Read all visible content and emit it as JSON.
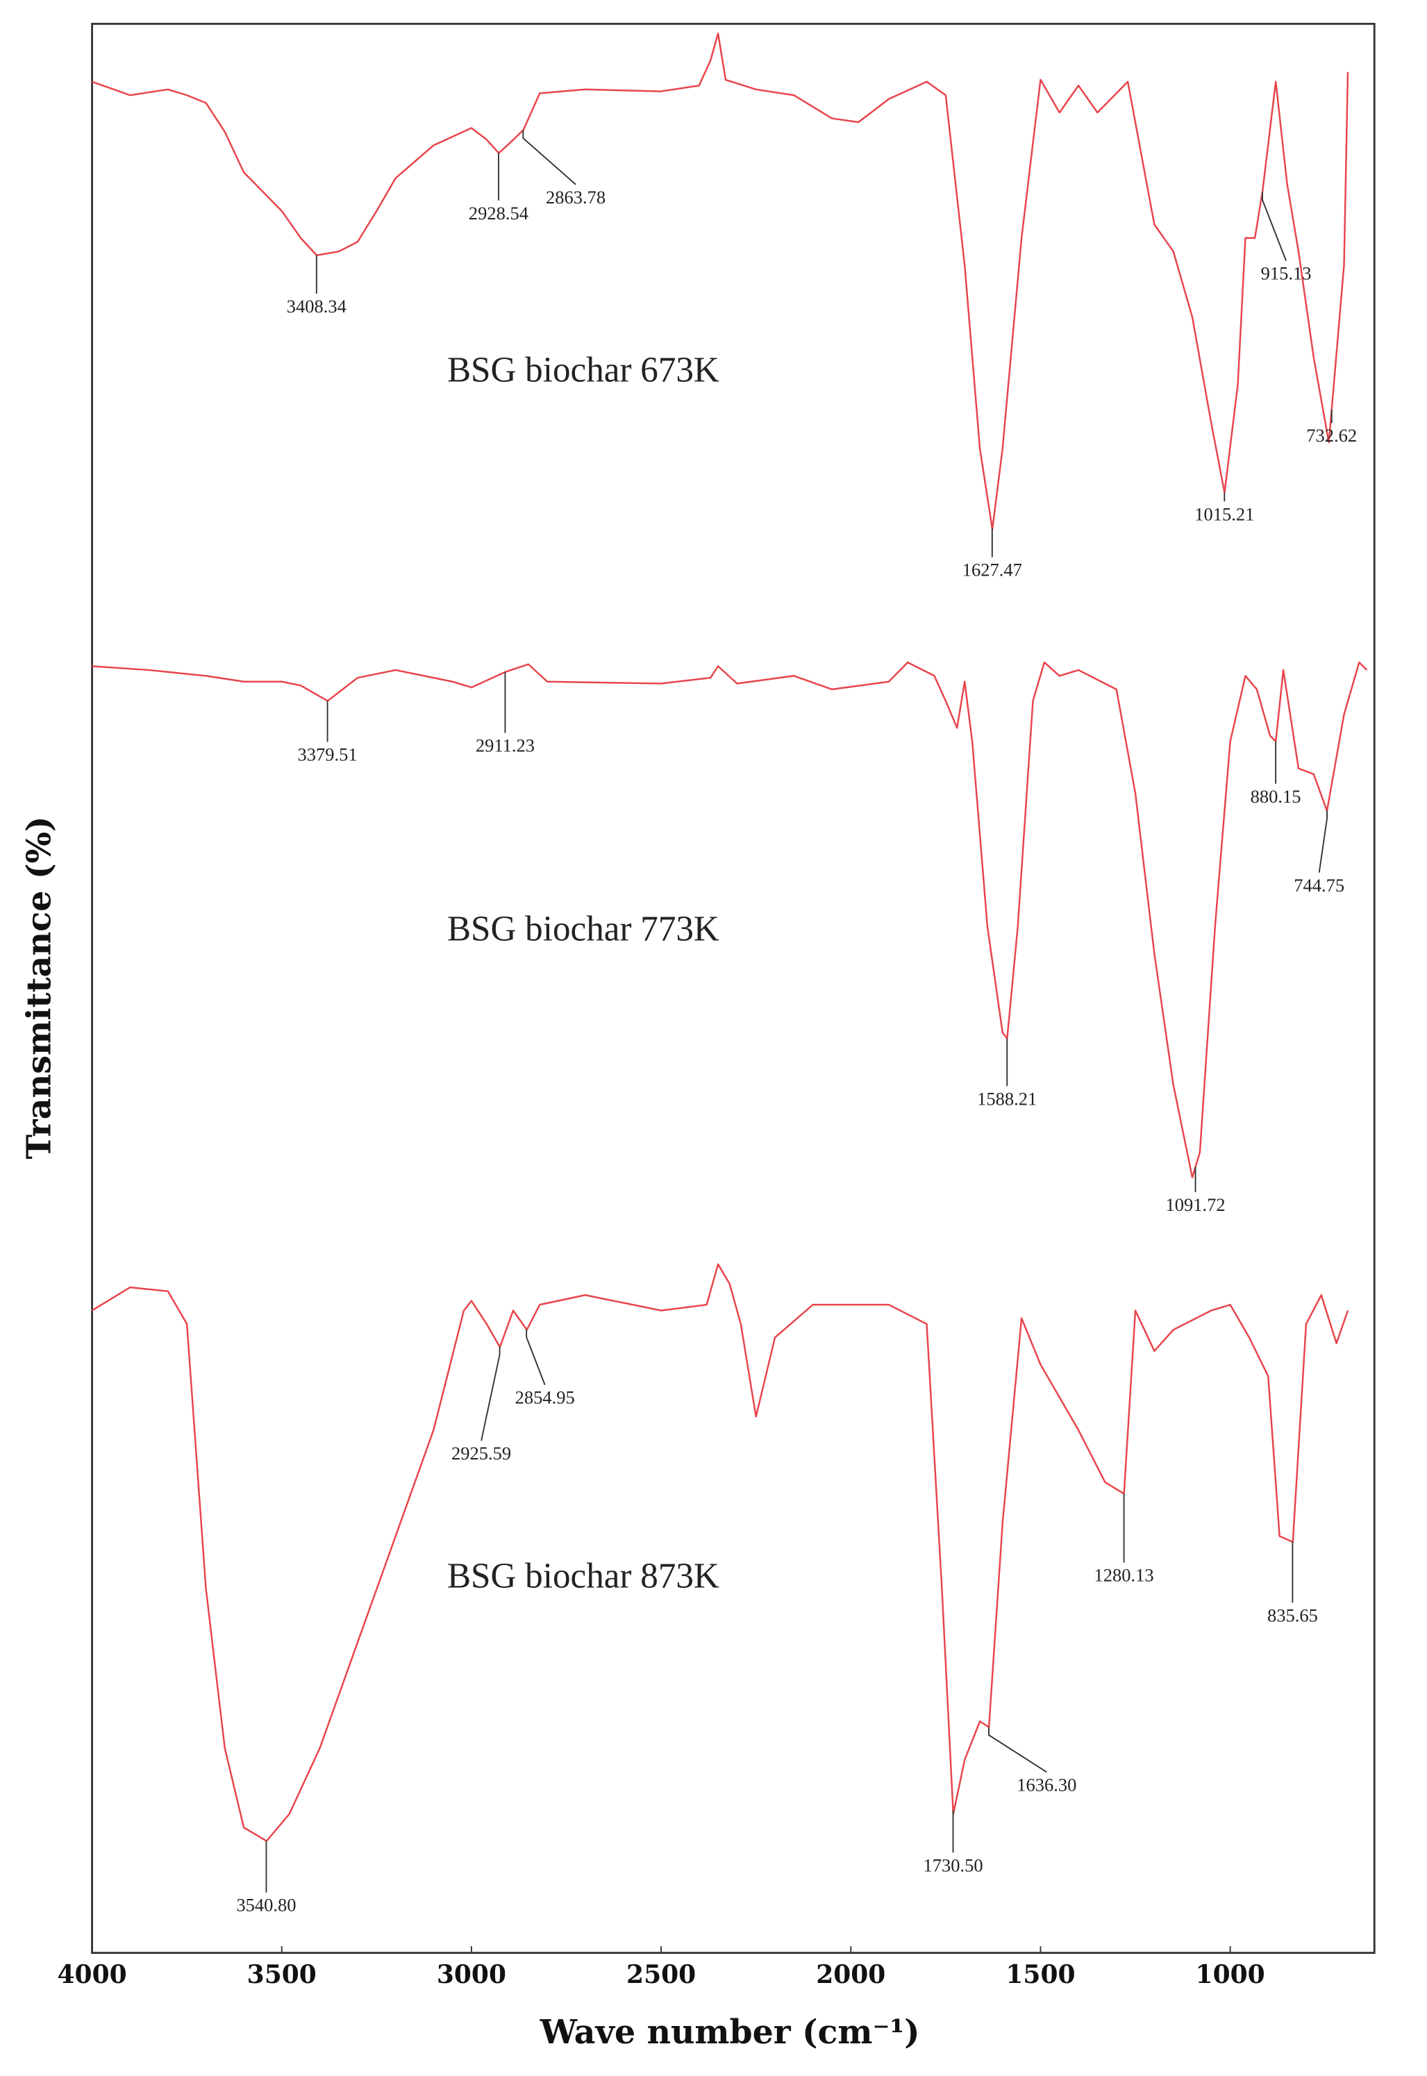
{
  "chart_data": {
    "type": "line",
    "xlabel": "Wave number (cm⁻¹)",
    "ylabel": "Transmittance (%)",
    "xlim": [
      4000,
      620
    ],
    "xticks": [
      4000,
      3500,
      3000,
      2500,
      2000,
      1500,
      1000
    ],
    "ylim": [
      0,
      100
    ],
    "series": [
      {
        "name": "BSG biochar 673K",
        "color": "#e8444a",
        "x": [
          4000,
          3900,
          3800,
          3750,
          3700,
          3650,
          3600,
          3550,
          3500,
          3450,
          3408,
          3350,
          3300,
          3250,
          3200,
          3100,
          3000,
          2960,
          2928,
          2900,
          2863,
          2820,
          2700,
          2500,
          2400,
          2370,
          2350,
          2330,
          2250,
          2150,
          2050,
          1980,
          1900,
          1800,
          1750,
          1700,
          1660,
          1627,
          1600,
          1550,
          1500,
          1450,
          1400,
          1350,
          1270,
          1200,
          1150,
          1100,
          1050,
          1015,
          980,
          960,
          935,
          915,
          880,
          850,
          820,
          780,
          740,
          700,
          690
        ],
        "values": [
          97.0,
          96.3,
          96.6,
          96.3,
          95.9,
          94.4,
          92.3,
          91.3,
          90.3,
          88.9,
          88.0,
          88.2,
          88.7,
          90.3,
          92.0,
          93.7,
          94.6,
          94.0,
          93.3,
          93.8,
          94.5,
          96.4,
          96.6,
          96.5,
          96.8,
          98.1,
          99.5,
          97.1,
          96.6,
          96.3,
          95.1,
          94.9,
          96.1,
          97.0,
          96.3,
          87.5,
          78.0,
          73.8,
          78.0,
          88.9,
          97.1,
          95.4,
          96.8,
          95.4,
          97.0,
          89.6,
          88.2,
          84.8,
          79.3,
          75.7,
          81.3,
          88.9,
          88.9,
          91.3,
          97.0,
          91.7,
          88.2,
          82.7,
          78.3,
          87.5,
          97.5
        ],
        "peaks": [
          {
            "value": 3408.34,
            "label": "3408.34"
          },
          {
            "value": 2928.54,
            "label": "2928.54"
          },
          {
            "value": 2863.78,
            "label": "2863.78"
          },
          {
            "value": 1627.47,
            "label": "1627.47"
          },
          {
            "value": 1015.21,
            "label": "1015.21"
          },
          {
            "value": 915.13,
            "label": "915.13"
          },
          {
            "value": 732.62,
            "label": "732.62"
          }
        ]
      },
      {
        "name": "BSG biochar 773K",
        "color": "#e8444a",
        "x": [
          4000,
          3850,
          3700,
          3600,
          3500,
          3450,
          3379,
          3300,
          3200,
          3050,
          3000,
          2911,
          2850,
          2800,
          2500,
          2370,
          2350,
          2300,
          2150,
          2050,
          1900,
          1850,
          1780,
          1750,
          1720,
          1700,
          1680,
          1640,
          1600,
          1588,
          1560,
          1520,
          1490,
          1450,
          1400,
          1300,
          1250,
          1200,
          1150,
          1100,
          1080,
          1040,
          1000,
          960,
          930,
          895,
          880,
          860,
          820,
          780,
          745,
          700,
          660,
          640
        ],
        "values": [
          66.7,
          66.5,
          66.2,
          65.9,
          65.9,
          65.7,
          64.9,
          66.1,
          66.5,
          65.9,
          65.6,
          66.4,
          66.8,
          65.9,
          65.8,
          66.1,
          66.7,
          65.8,
          66.2,
          65.5,
          65.9,
          66.9,
          66.2,
          64.9,
          63.5,
          65.9,
          62.8,
          53.2,
          47.7,
          47.4,
          53.2,
          64.9,
          66.9,
          66.2,
          66.5,
          65.5,
          60.1,
          51.8,
          45.0,
          40.2,
          41.5,
          53.2,
          62.8,
          66.2,
          65.5,
          63.1,
          62.8,
          66.5,
          61.4,
          61.1,
          59.2,
          64.2,
          66.9,
          66.5
        ],
        "peaks": [
          {
            "value": 3379.51,
            "label": "3379.51"
          },
          {
            "value": 2911.23,
            "label": "2911.23"
          },
          {
            "value": 1588.21,
            "label": "1588.21"
          },
          {
            "value": 1091.72,
            "label": "1091.72"
          },
          {
            "value": 880.15,
            "label": "880.15"
          },
          {
            "value": 744.75,
            "label": "744.75"
          }
        ]
      },
      {
        "name": "BSG biochar 873K",
        "color": "#e8444a",
        "x": [
          4000,
          3900,
          3800,
          3750,
          3700,
          3650,
          3600,
          3540,
          3480,
          3400,
          3300,
          3200,
          3100,
          3020,
          3000,
          2960,
          2925,
          2890,
          2854,
          2820,
          2700,
          2500,
          2380,
          2350,
          2320,
          2290,
          2250,
          2200,
          2100,
          1900,
          1800,
          1760,
          1730,
          1700,
          1660,
          1636,
          1600,
          1550,
          1500,
          1400,
          1330,
          1280,
          1250,
          1200,
          1150,
          1050,
          1000,
          950,
          900,
          870,
          835,
          800,
          760,
          720,
          690
        ],
        "values": [
          33.3,
          34.5,
          34.3,
          32.6,
          18.9,
          10.6,
          6.5,
          5.8,
          7.2,
          10.6,
          16.1,
          21.6,
          27.1,
          33.3,
          33.8,
          32.6,
          31.4,
          33.3,
          32.3,
          33.6,
          34.1,
          33.3,
          33.6,
          35.7,
          34.7,
          32.6,
          27.8,
          31.9,
          33.6,
          33.6,
          32.6,
          18.9,
          7.2,
          10.0,
          12.0,
          11.7,
          22.3,
          32.9,
          30.5,
          27.1,
          24.4,
          23.8,
          33.3,
          31.2,
          32.3,
          33.3,
          33.6,
          31.9,
          29.9,
          21.6,
          21.3,
          32.6,
          34.1,
          31.6,
          33.3
        ],
        "peaks": [
          {
            "value": 3540.8,
            "label": "3540.80"
          },
          {
            "value": 2925.59,
            "label": "2925.59"
          },
          {
            "value": 2854.95,
            "label": "2854.95"
          },
          {
            "value": 1730.5,
            "label": "1730.50"
          },
          {
            "value": 1636.3,
            "label": "1636.30"
          },
          {
            "value": 1280.13,
            "label": "1280.13"
          },
          {
            "value": 835.65,
            "label": "835.65"
          }
        ]
      }
    ]
  }
}
